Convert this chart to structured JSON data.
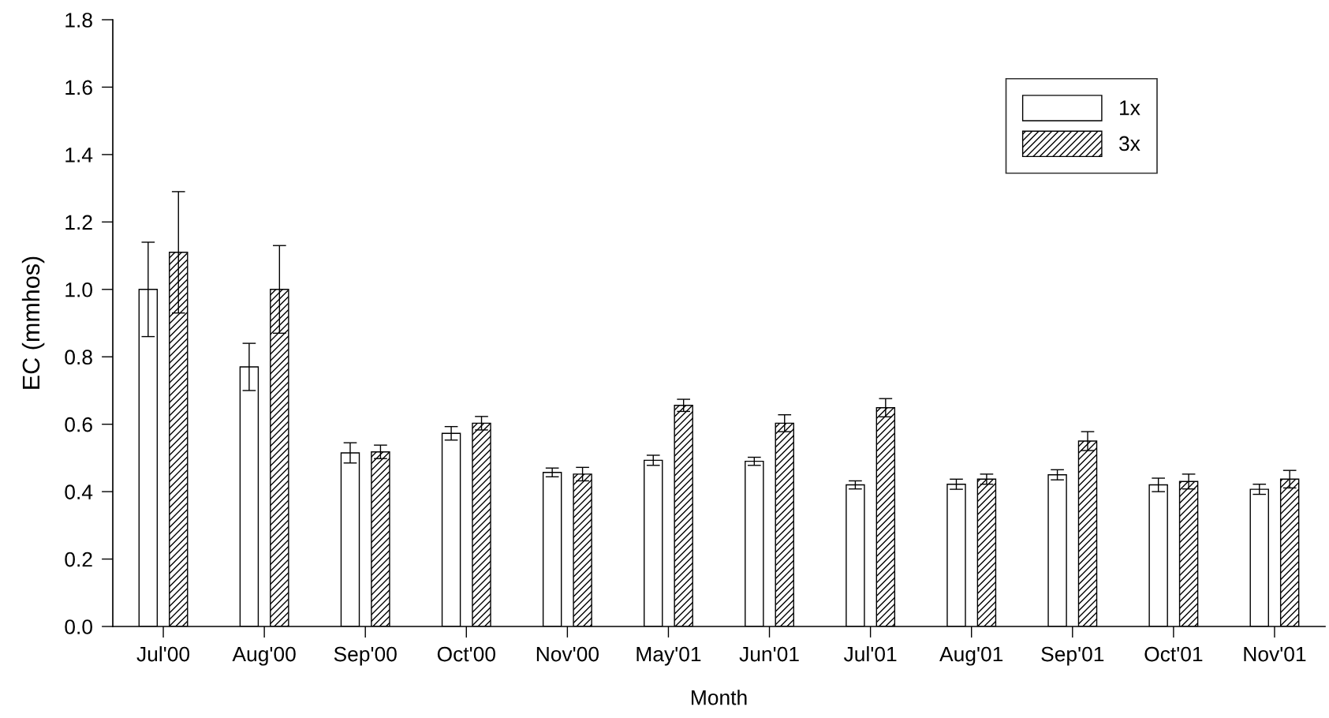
{
  "chart_data": {
    "type": "bar",
    "xlabel": "Month",
    "ylabel": "EC (mmhos)",
    "categories": [
      "Jul'00",
      "Aug'00",
      "Sep'00",
      "Oct'00",
      "Nov'00",
      "May'01",
      "Jun'01",
      "Jul'01",
      "Aug'01",
      "Sep'01",
      "Oct'01",
      "Nov'01"
    ],
    "series": [
      {
        "name": "1x",
        "color": "#ffffff",
        "values": [
          1.0,
          0.77,
          0.515,
          0.573,
          0.457,
          0.493,
          0.49,
          0.42,
          0.422,
          0.45,
          0.42,
          0.407
        ],
        "errors": [
          0.14,
          0.07,
          0.03,
          0.02,
          0.013,
          0.015,
          0.012,
          0.012,
          0.015,
          0.015,
          0.02,
          0.015
        ]
      },
      {
        "name": "3x",
        "color": "#000000",
        "values": [
          1.11,
          1.0,
          0.518,
          0.603,
          0.452,
          0.656,
          0.603,
          0.649,
          0.437,
          0.55,
          0.43,
          0.437
        ],
        "errors": [
          0.18,
          0.13,
          0.02,
          0.02,
          0.02,
          0.018,
          0.025,
          0.027,
          0.015,
          0.028,
          0.022,
          0.026
        ]
      }
    ],
    "ylim": [
      0,
      1.8
    ],
    "yticks": [
      {
        "value": 0,
        "label": "0.0"
      },
      {
        "value": 0.2,
        "label": "0.2"
      },
      {
        "value": 0.4,
        "label": "0.4"
      },
      {
        "value": 0.6,
        "label": "0.6"
      },
      {
        "value": 0.8,
        "label": "0.8"
      },
      {
        "value": 1.0,
        "label": "1.0"
      },
      {
        "value": 1.2,
        "label": "1.2"
      },
      {
        "value": 1.4,
        "label": "1.4"
      },
      {
        "value": 1.6,
        "label": "1.6"
      },
      {
        "value": 1.8,
        "label": "1.8"
      }
    ],
    "grid": false,
    "legend": "top right"
  }
}
